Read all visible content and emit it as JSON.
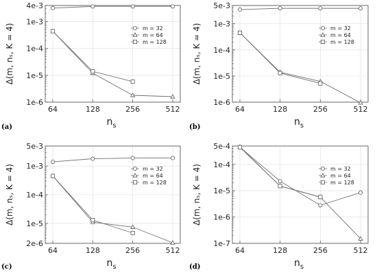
{
  "colors": {
    "axis": "#555555",
    "line": "#707070",
    "marker_stroke": "#555555",
    "marker_fill": "#ffffff",
    "text": "#222222"
  },
  "chart_data": [
    {
      "type": "line",
      "panel_label": "(a)",
      "xlabel_main": "n",
      "xlabel_sub": "s",
      "ylabel": "Δ(m, nₛ, K = 4)",
      "x": [
        64,
        128,
        256,
        512
      ],
      "xscale": "log2",
      "yscale": "log",
      "ylim": [
        1e-06,
        0.004
      ],
      "yticks": [
        {
          "value": 0.004,
          "label": "4e-3"
        },
        {
          "value": 0.001,
          "label": "1e-3"
        },
        {
          "value": 0.0001,
          "label": "1e-4"
        },
        {
          "value": 1e-05,
          "label": "1e-5"
        },
        {
          "value": 1e-06,
          "label": "1e-6"
        }
      ],
      "legend_position": "right",
      "grid": true,
      "series": [
        {
          "name": "m = 32",
          "marker": "circle",
          "values": [
            0.0032,
            0.0037,
            0.0037,
            0.0037
          ]
        },
        {
          "name": "m = 64",
          "marker": "triangle",
          "values": [
            0.00044,
            1.2e-05,
            1.8e-06,
            1.6e-06
          ]
        },
        {
          "name": "m = 128",
          "marker": "square",
          "values": [
            0.00044,
            1.4e-05,
            5.8e-06,
            null
          ]
        }
      ]
    },
    {
      "type": "line",
      "panel_label": "(b)",
      "xlabel_main": "n",
      "xlabel_sub": "s",
      "ylabel": "Δ(m, nₛ, K = 4)",
      "x": [
        64,
        128,
        256,
        512
      ],
      "xscale": "log2",
      "yscale": "log",
      "ylim": [
        1e-06,
        0.005
      ],
      "yticks": [
        {
          "value": 0.005,
          "label": "5e-3"
        },
        {
          "value": 0.001,
          "label": "1e-3"
        },
        {
          "value": 0.0001,
          "label": "1e-4"
        },
        {
          "value": 1e-05,
          "label": "1e-5"
        },
        {
          "value": 1e-06,
          "label": "1e-6"
        }
      ],
      "legend_position": "right",
      "grid": true,
      "series": [
        {
          "name": "m = 32",
          "marker": "circle",
          "values": [
            0.0035,
            0.0039,
            0.0039,
            0.0039
          ]
        },
        {
          "name": "m = 64",
          "marker": "triangle",
          "values": [
            0.00045,
            1.4e-05,
            6.2e-06,
            9.5e-07
          ]
        },
        {
          "name": "m = 128",
          "marker": "square",
          "values": [
            0.00045,
            1.3e-05,
            5.2e-06,
            null
          ]
        }
      ]
    },
    {
      "type": "line",
      "panel_label": "(c)",
      "xlabel_main": "n",
      "xlabel_sub": "s",
      "ylabel": "Δ(m, nₛ, K = 4)",
      "x": [
        64,
        128,
        256,
        512
      ],
      "xscale": "log2",
      "yscale": "log",
      "ylim": [
        2e-06,
        0.005
      ],
      "yticks": [
        {
          "value": 0.005,
          "label": "5e-3"
        },
        {
          "value": 0.001,
          "label": "1e-3"
        },
        {
          "value": 0.0001,
          "label": "1e-4"
        },
        {
          "value": 1e-05,
          "label": "1e-5"
        },
        {
          "value": 2e-06,
          "label": "2e-6"
        }
      ],
      "legend_position": "right",
      "grid": true,
      "series": [
        {
          "name": "m = 32",
          "marker": "circle",
          "values": [
            0.0014,
            0.0018,
            0.0019,
            0.0019
          ]
        },
        {
          "name": "m = 64",
          "marker": "triangle",
          "values": [
            0.00045,
            1.1e-05,
            7.4e-06,
            2.1e-06
          ]
        },
        {
          "name": "m = 128",
          "marker": "square",
          "values": [
            0.00045,
            1.3e-05,
            4.6e-06,
            null
          ]
        }
      ]
    },
    {
      "type": "line",
      "panel_label": "(d)",
      "xlabel_main": "n",
      "xlabel_sub": "s",
      "ylabel": "Δ(m, nₛ, K = 4)",
      "x": [
        64,
        128,
        256,
        512
      ],
      "xscale": "log2",
      "yscale": "log",
      "ylim": [
        1e-07,
        0.0005
      ],
      "yticks": [
        {
          "value": 0.0005,
          "label": "5e-4"
        },
        {
          "value": 0.0001,
          "label": "1e-4"
        },
        {
          "value": 1e-05,
          "label": "1e-5"
        },
        {
          "value": 1e-06,
          "label": "1e-6"
        },
        {
          "value": 1e-07,
          "label": "1e-7"
        }
      ],
      "legend_position": "right",
      "grid": true,
      "series": [
        {
          "name": "m = 32",
          "marker": "circle",
          "values": [
            0.00045,
            2.3e-05,
            2.8e-06,
            8.5e-06
          ]
        },
        {
          "name": "m = 64",
          "marker": "triangle",
          "values": [
            0.00047,
            1.5e-05,
            5.7e-06,
            1.5e-07
          ]
        },
        {
          "name": "m = 128",
          "marker": "square",
          "values": [
            0.00045,
            1.5e-05,
            5.8e-06,
            null
          ]
        }
      ]
    }
  ]
}
